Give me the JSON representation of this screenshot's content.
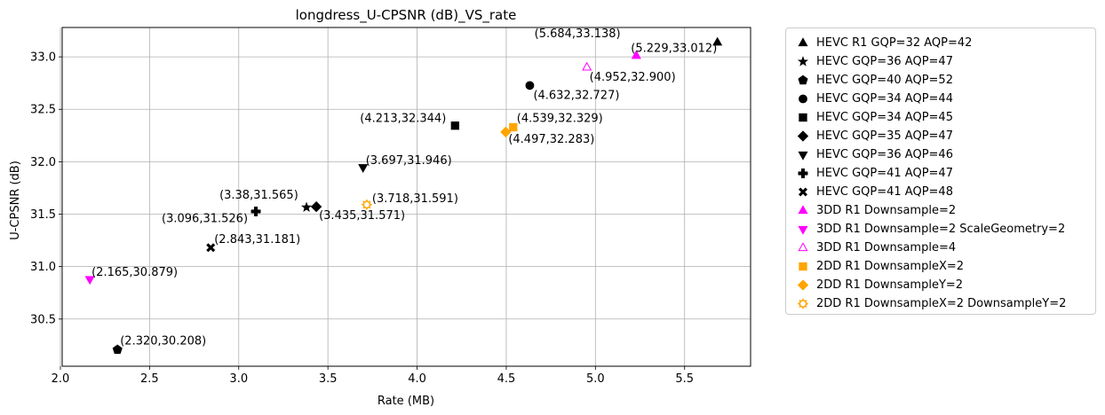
{
  "chart_data": {
    "type": "scatter",
    "title": "longdress_U-CPSNR (dB)_VS_rate",
    "xlabel": "Rate (MB)",
    "ylabel": "U-CPSNR (dB)",
    "xlim": [
      2.01,
      5.87
    ],
    "ylim": [
      30.05,
      33.28
    ],
    "xticks": [
      "2.0",
      "2.5",
      "3.0",
      "3.5",
      "4.0",
      "4.5",
      "5.0",
      "5.5"
    ],
    "yticks": [
      "30.5",
      "31.0",
      "31.5",
      "32.0",
      "32.5",
      "33.0"
    ],
    "grid": true,
    "legend_position": "outside-right",
    "series": [
      {
        "name": "HEVC R1 GQP=32 AQP=42",
        "marker": "triangle-up",
        "color": "#000000",
        "filled": true,
        "points": [
          {
            "x": 5.684,
            "y": 33.138,
            "label": "(5.684,33.138)"
          }
        ]
      },
      {
        "name": "HEVC GQP=36 AQP=47",
        "marker": "star",
        "color": "#000000",
        "filled": true,
        "points": [
          {
            "x": 3.38,
            "y": 31.565,
            "label": "(3.38,31.565)"
          }
        ]
      },
      {
        "name": "HEVC GQP=40 AQP=52",
        "marker": "pentagon",
        "color": "#000000",
        "filled": true,
        "points": [
          {
            "x": 2.32,
            "y": 30.208,
            "label": "(2.320,30.208)"
          }
        ]
      },
      {
        "name": "HEVC GQP=34 AQP=44",
        "marker": "circle",
        "color": "#000000",
        "filled": true,
        "points": [
          {
            "x": 4.632,
            "y": 32.727,
            "label": "(4.632,32.727)"
          }
        ]
      },
      {
        "name": "HEVC GQP=34 AQP=45",
        "marker": "square",
        "color": "#000000",
        "filled": true,
        "points": [
          {
            "x": 4.213,
            "y": 32.344,
            "label": "(4.213,32.344)"
          }
        ]
      },
      {
        "name": "HEVC GQP=35 AQP=47",
        "marker": "diamond",
        "color": "#000000",
        "filled": true,
        "points": [
          {
            "x": 3.435,
            "y": 31.571,
            "label": "(3.435,31.571)"
          }
        ]
      },
      {
        "name": "HEVC GQP=36 AQP=46",
        "marker": "triangle-down",
        "color": "#000000",
        "filled": true,
        "points": [
          {
            "x": 3.697,
            "y": 31.946,
            "label": "(3.697,31.946)"
          }
        ]
      },
      {
        "name": "HEVC GQP=41 AQP=47",
        "marker": "plus",
        "color": "#000000",
        "filled": true,
        "points": [
          {
            "x": 3.096,
            "y": 31.526,
            "label": "(3.096,31.526)"
          }
        ]
      },
      {
        "name": "HEVC GQP=41 AQP=48",
        "marker": "x",
        "color": "#000000",
        "filled": true,
        "points": [
          {
            "x": 2.843,
            "y": 31.181,
            "label": "(2.843,31.181)"
          }
        ]
      },
      {
        "name": "3DD R1 Downsample=2",
        "marker": "triangle-up",
        "color": "#ff00ff",
        "filled": true,
        "points": [
          {
            "x": 5.229,
            "y": 33.012,
            "label": "(5.229,33.012)"
          }
        ]
      },
      {
        "name": "3DD R1 Downsample=2 ScaleGeometry=2",
        "marker": "triangle-down",
        "color": "#ff00ff",
        "filled": true,
        "points": [
          {
            "x": 2.165,
            "y": 30.879,
            "label": "(2.165,30.879)"
          }
        ]
      },
      {
        "name": "3DD R1 Downsample=4",
        "marker": "triangle-up",
        "color": "#ff00ff",
        "filled": false,
        "points": [
          {
            "x": 4.952,
            "y": 32.9,
            "label": "(4.952,32.900)"
          }
        ]
      },
      {
        "name": "2DD R1 DownsampleX=2",
        "marker": "square",
        "color": "#ffa500",
        "filled": true,
        "points": [
          {
            "x": 4.539,
            "y": 32.329,
            "label": "(4.539,32.329)"
          }
        ]
      },
      {
        "name": "2DD R1 DownsampleY=2",
        "marker": "diamond",
        "color": "#ffa500",
        "filled": true,
        "points": [
          {
            "x": 4.497,
            "y": 32.283,
            "label": "(4.497,32.283)"
          }
        ]
      },
      {
        "name": "2DD R1 DownsampleX=2 DownsampleY=2",
        "marker": "gear",
        "color": "#ffa500",
        "filled": false,
        "points": [
          {
            "x": 3.718,
            "y": 31.591,
            "label": "(3.718,31.591)"
          }
        ]
      }
    ]
  }
}
